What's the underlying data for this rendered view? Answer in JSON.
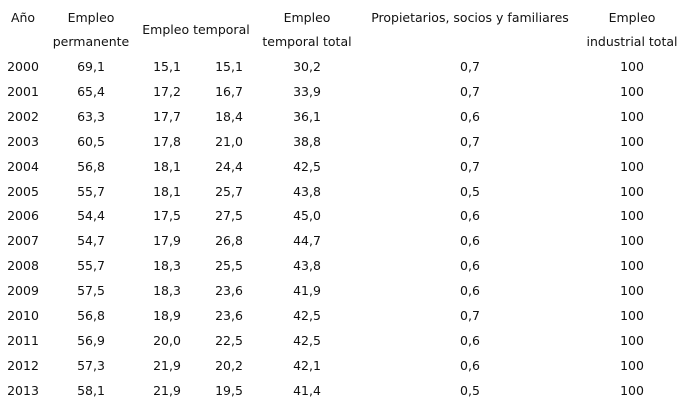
{
  "table": {
    "headers": {
      "year": "Año",
      "permanent": [
        "Empleo",
        "permanente"
      ],
      "temporary": "Empleo temporal",
      "temporary_total": [
        "Empleo",
        "temporal total"
      ],
      "owners": "Propietarios, socios y familiares",
      "industrial_total": [
        "Empleo",
        "industrial total"
      ]
    },
    "rows": [
      [
        "2000",
        "69,1",
        "15,1",
        "15,1",
        "30,2",
        "0,7",
        "100"
      ],
      [
        "2001",
        "65,4",
        "17,2",
        "16,7",
        "33,9",
        "0,7",
        "100"
      ],
      [
        "2002",
        "63,3",
        "17,7",
        "18,4",
        "36,1",
        "0,6",
        "100"
      ],
      [
        "2003",
        "60,5",
        "17,8",
        "21,0",
        "38,8",
        "0,7",
        "100"
      ],
      [
        "2004",
        "56,8",
        "18,1",
        "24,4",
        "42,5",
        "0,7",
        "100"
      ],
      [
        "2005",
        "55,7",
        "18,1",
        "25,7",
        "43,8",
        "0,5",
        "100"
      ],
      [
        "2006",
        "54,4",
        "17,5",
        "27,5",
        "45,0",
        "0,6",
        "100"
      ],
      [
        "2007",
        "54,7",
        "17,9",
        "26,8",
        "44,7",
        "0,6",
        "100"
      ],
      [
        "2008",
        "55,7",
        "18,3",
        "25,5",
        "43,8",
        "0,6",
        "100"
      ],
      [
        "2009",
        "57,5",
        "18,3",
        "23,6",
        "41,9",
        "0,6",
        "100"
      ],
      [
        "2010",
        "56,8",
        "18,9",
        "23,6",
        "42,5",
        "0,7",
        "100"
      ],
      [
        "2011",
        "56,9",
        "20,0",
        "22,5",
        "42,5",
        "0,6",
        "100"
      ],
      [
        "2012",
        "57,3",
        "21,9",
        "20,2",
        "42,1",
        "0,6",
        "100"
      ],
      [
        "2013",
        "58,1",
        "21,9",
        "19,5",
        "41,4",
        "0,5",
        "100"
      ]
    ]
  }
}
